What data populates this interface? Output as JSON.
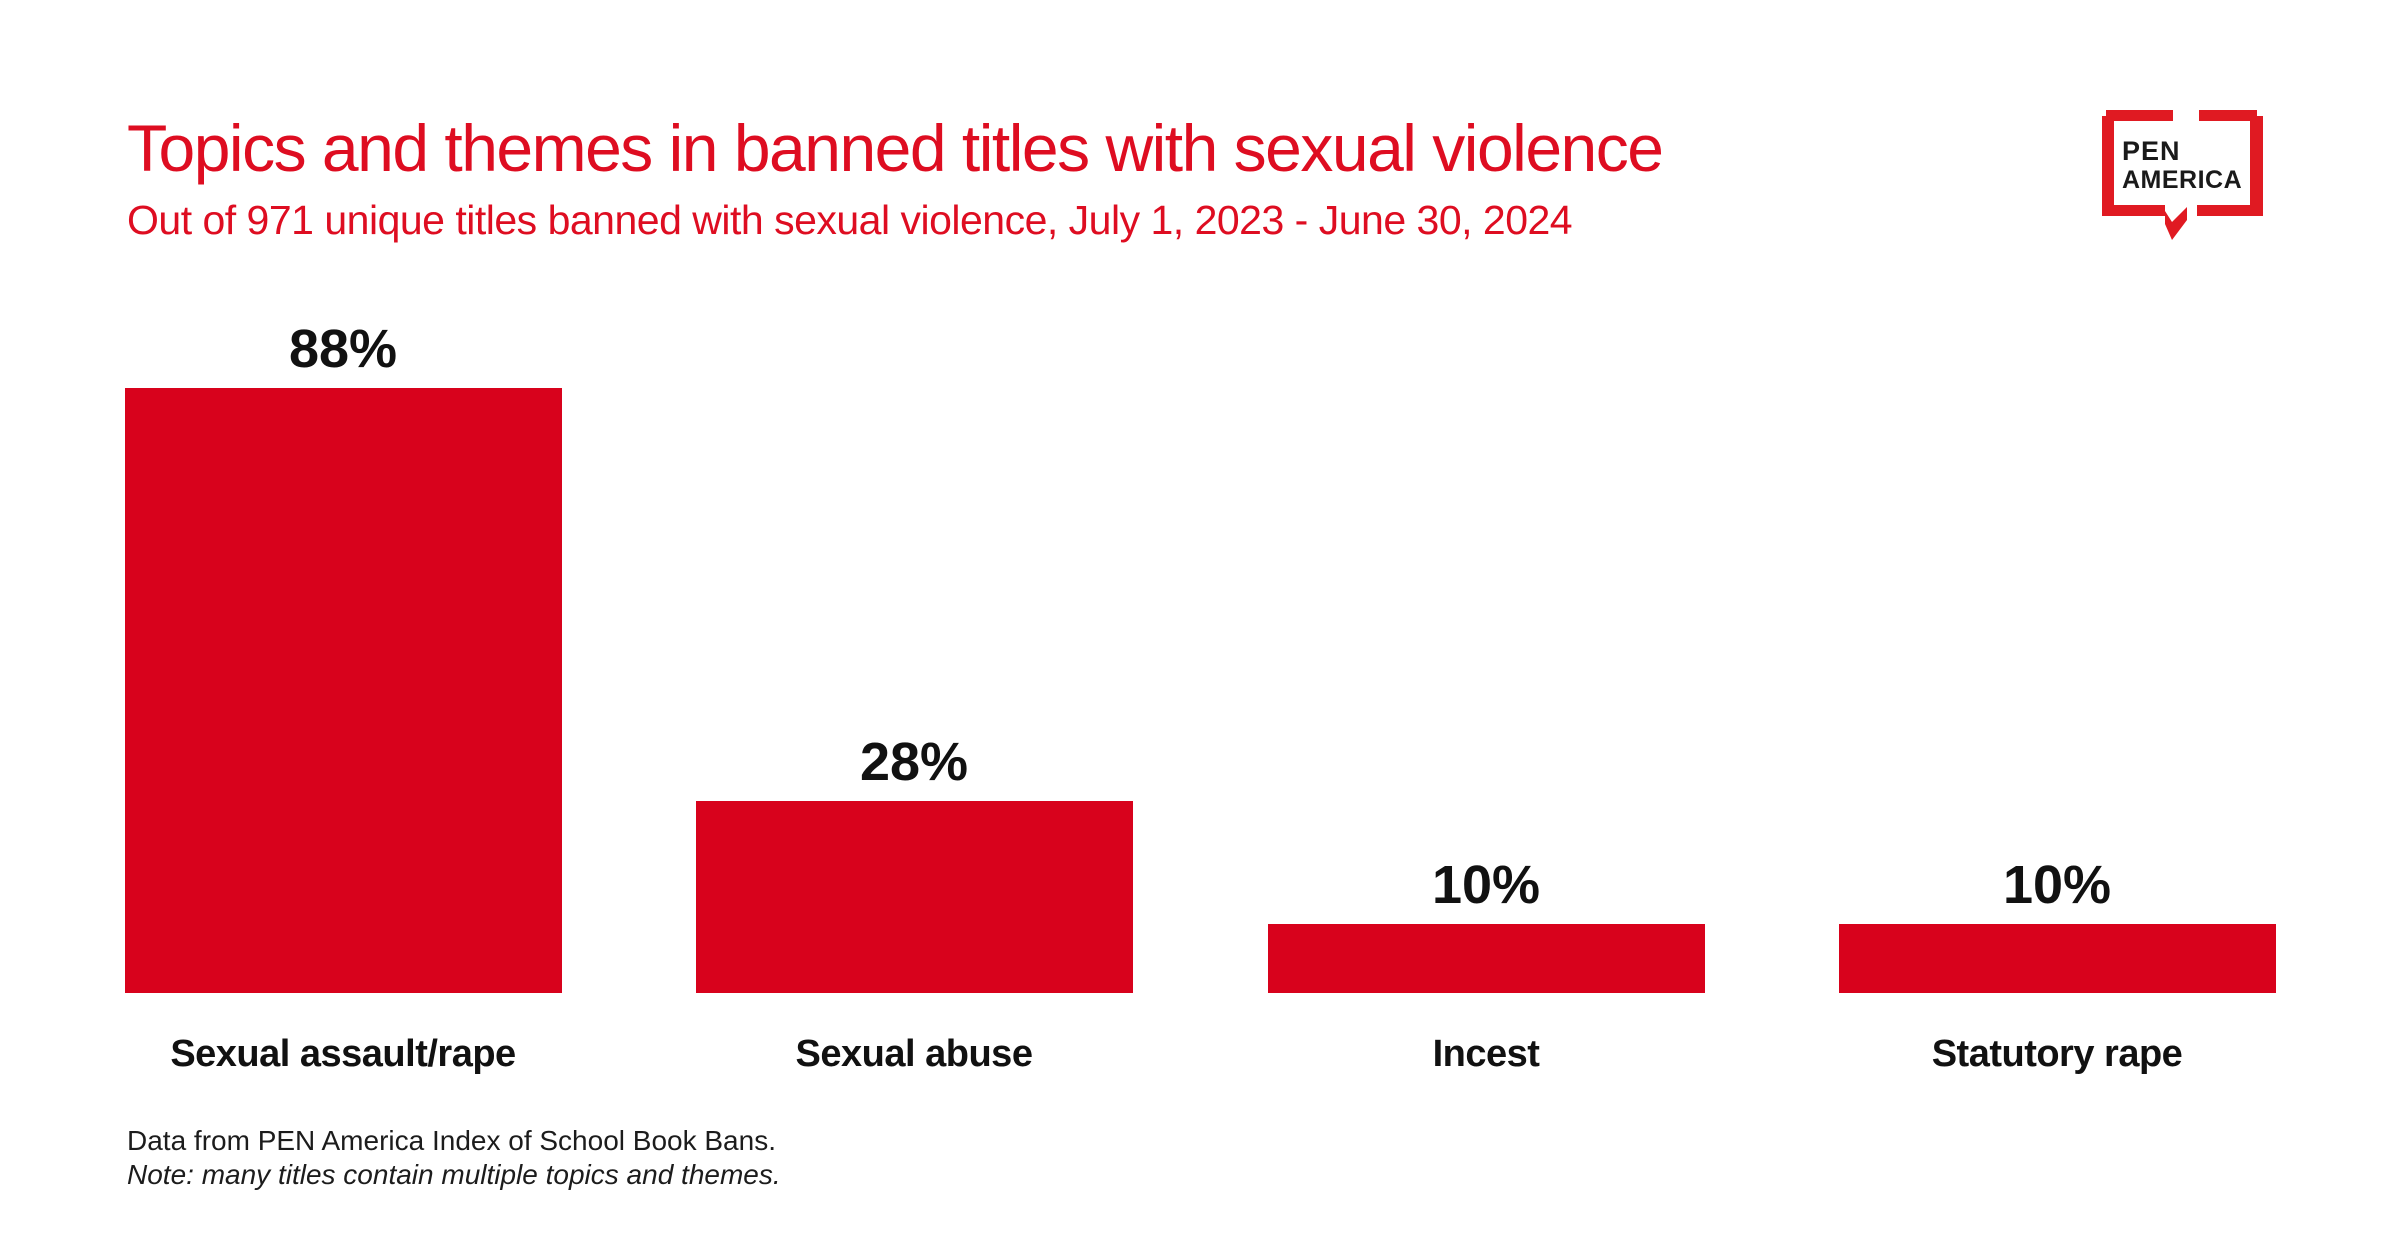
{
  "header": {
    "title": "Topics and themes in banned titles with sexual violence",
    "subtitle": "Out of 971 unique titles banned with sexual violence, July 1, 2023 - June 30, 2024",
    "title_color": "#DE0D21"
  },
  "logo": {
    "line1": "PEN",
    "line2": "AMERICA",
    "mark_color": "#E01A22",
    "text_color": "#1A1A1A"
  },
  "chart_data": {
    "type": "bar",
    "categories": [
      "Sexual assault/rape",
      "Sexual abuse",
      "Incest",
      "Statutory rape"
    ],
    "values": [
      88,
      28,
      10,
      10
    ],
    "value_labels": [
      "88%",
      "28%",
      "10%",
      "10%"
    ],
    "bar_color": "#D8021C",
    "value_label_color": "#111111",
    "category_label_color": "#111111",
    "ylim": [
      0,
      100
    ],
    "grid": false,
    "legend": "none",
    "title": "Topics and themes in banned titles with sexual violence",
    "xlabel": "",
    "ylabel": ""
  },
  "footer": {
    "source": "Data from PEN America Index of School Book Bans.",
    "note": "Note: many titles contain multiple topics and themes."
  }
}
